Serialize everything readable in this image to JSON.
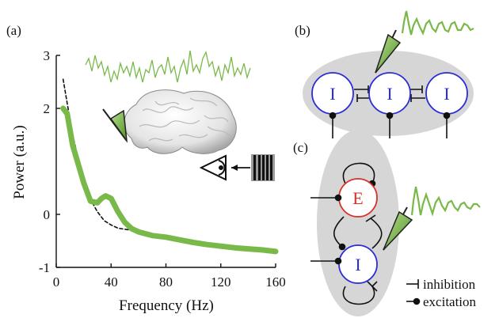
{
  "panels": {
    "a": "(a)",
    "b": "(b)",
    "c": "(c)"
  },
  "colors": {
    "green": "#79b94a",
    "red": "#d9312b",
    "blue": "#2c2cd6",
    "gray": "#d6d6d6"
  },
  "chart_data": {
    "type": "line",
    "xlabel": "Frequency (Hz)",
    "ylabel": "Power (a.u.)",
    "xlim": [
      0,
      160
    ],
    "ylim": [
      -1,
      3
    ],
    "x_ticks": [
      "0",
      "40",
      "80",
      "120",
      "160"
    ],
    "y_ticks": [
      "3",
      "2",
      "0",
      "-1"
    ],
    "series": [
      {
        "style": "dashed",
        "color": "#111111",
        "x": [
          5,
          8,
          12,
          16,
          20,
          25,
          30,
          35,
          40,
          45,
          50,
          55,
          60,
          70,
          80,
          90,
          100,
          110,
          120,
          130,
          140,
          150,
          160
        ],
        "y": [
          2.55,
          2.1,
          1.5,
          1.05,
          0.65,
          0.28,
          0.05,
          -0.12,
          -0.2,
          -0.26,
          -0.28,
          -0.3,
          -0.33,
          -0.38,
          -0.42,
          -0.48,
          -0.55,
          -0.58,
          -0.61,
          -0.63,
          -0.65,
          -0.67,
          -0.68
        ]
      },
      {
        "style": "solid-thick",
        "color": "#79b94a",
        "x": [
          5,
          8,
          12,
          16,
          20,
          25,
          30,
          33,
          36,
          40,
          45,
          50,
          55,
          60,
          70,
          80,
          90,
          100,
          110,
          120,
          130,
          140,
          150,
          160
        ],
        "y": [
          2.0,
          1.9,
          1.3,
          0.95,
          0.6,
          0.25,
          0.22,
          0.3,
          0.35,
          0.3,
          0.05,
          -0.15,
          -0.27,
          -0.33,
          -0.4,
          -0.43,
          -0.48,
          -0.53,
          -0.57,
          -0.6,
          -0.63,
          -0.65,
          -0.67,
          -0.7
        ]
      }
    ]
  },
  "diagram_b": {
    "nodes": [
      "I",
      "I",
      "I"
    ]
  },
  "diagram_c": {
    "nodes": [
      "E",
      "I"
    ]
  },
  "legend": {
    "inhibition": "inhibition",
    "excitation": "excitation"
  }
}
